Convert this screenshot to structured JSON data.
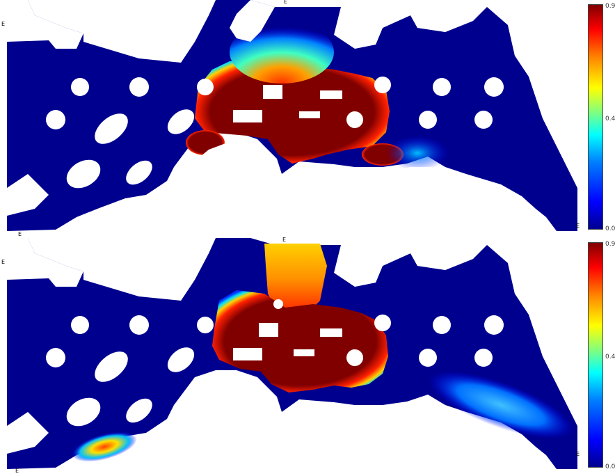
{
  "panels": [
    {
      "id": "top",
      "colorbar": {
        "max_label": "0.9",
        "mid_label": "0.45",
        "min_label": "0.0"
      },
      "edge_marks": [
        "E",
        "E",
        "E",
        "E"
      ]
    },
    {
      "id": "bottom",
      "colorbar": {
        "max_label": "0.9",
        "mid_label": "0.45",
        "min_label": "0.0"
      },
      "edge_marks": [
        "E",
        "E",
        "E",
        "E"
      ]
    }
  ],
  "colors": {
    "background": "#00008f",
    "land": "#ffffff",
    "high": "#800000",
    "colormap": [
      "#00008f",
      "#0000ff",
      "#0080ff",
      "#00ffff",
      "#ffff00",
      "#ff8000",
      "#ff0000",
      "#800000"
    ]
  }
}
